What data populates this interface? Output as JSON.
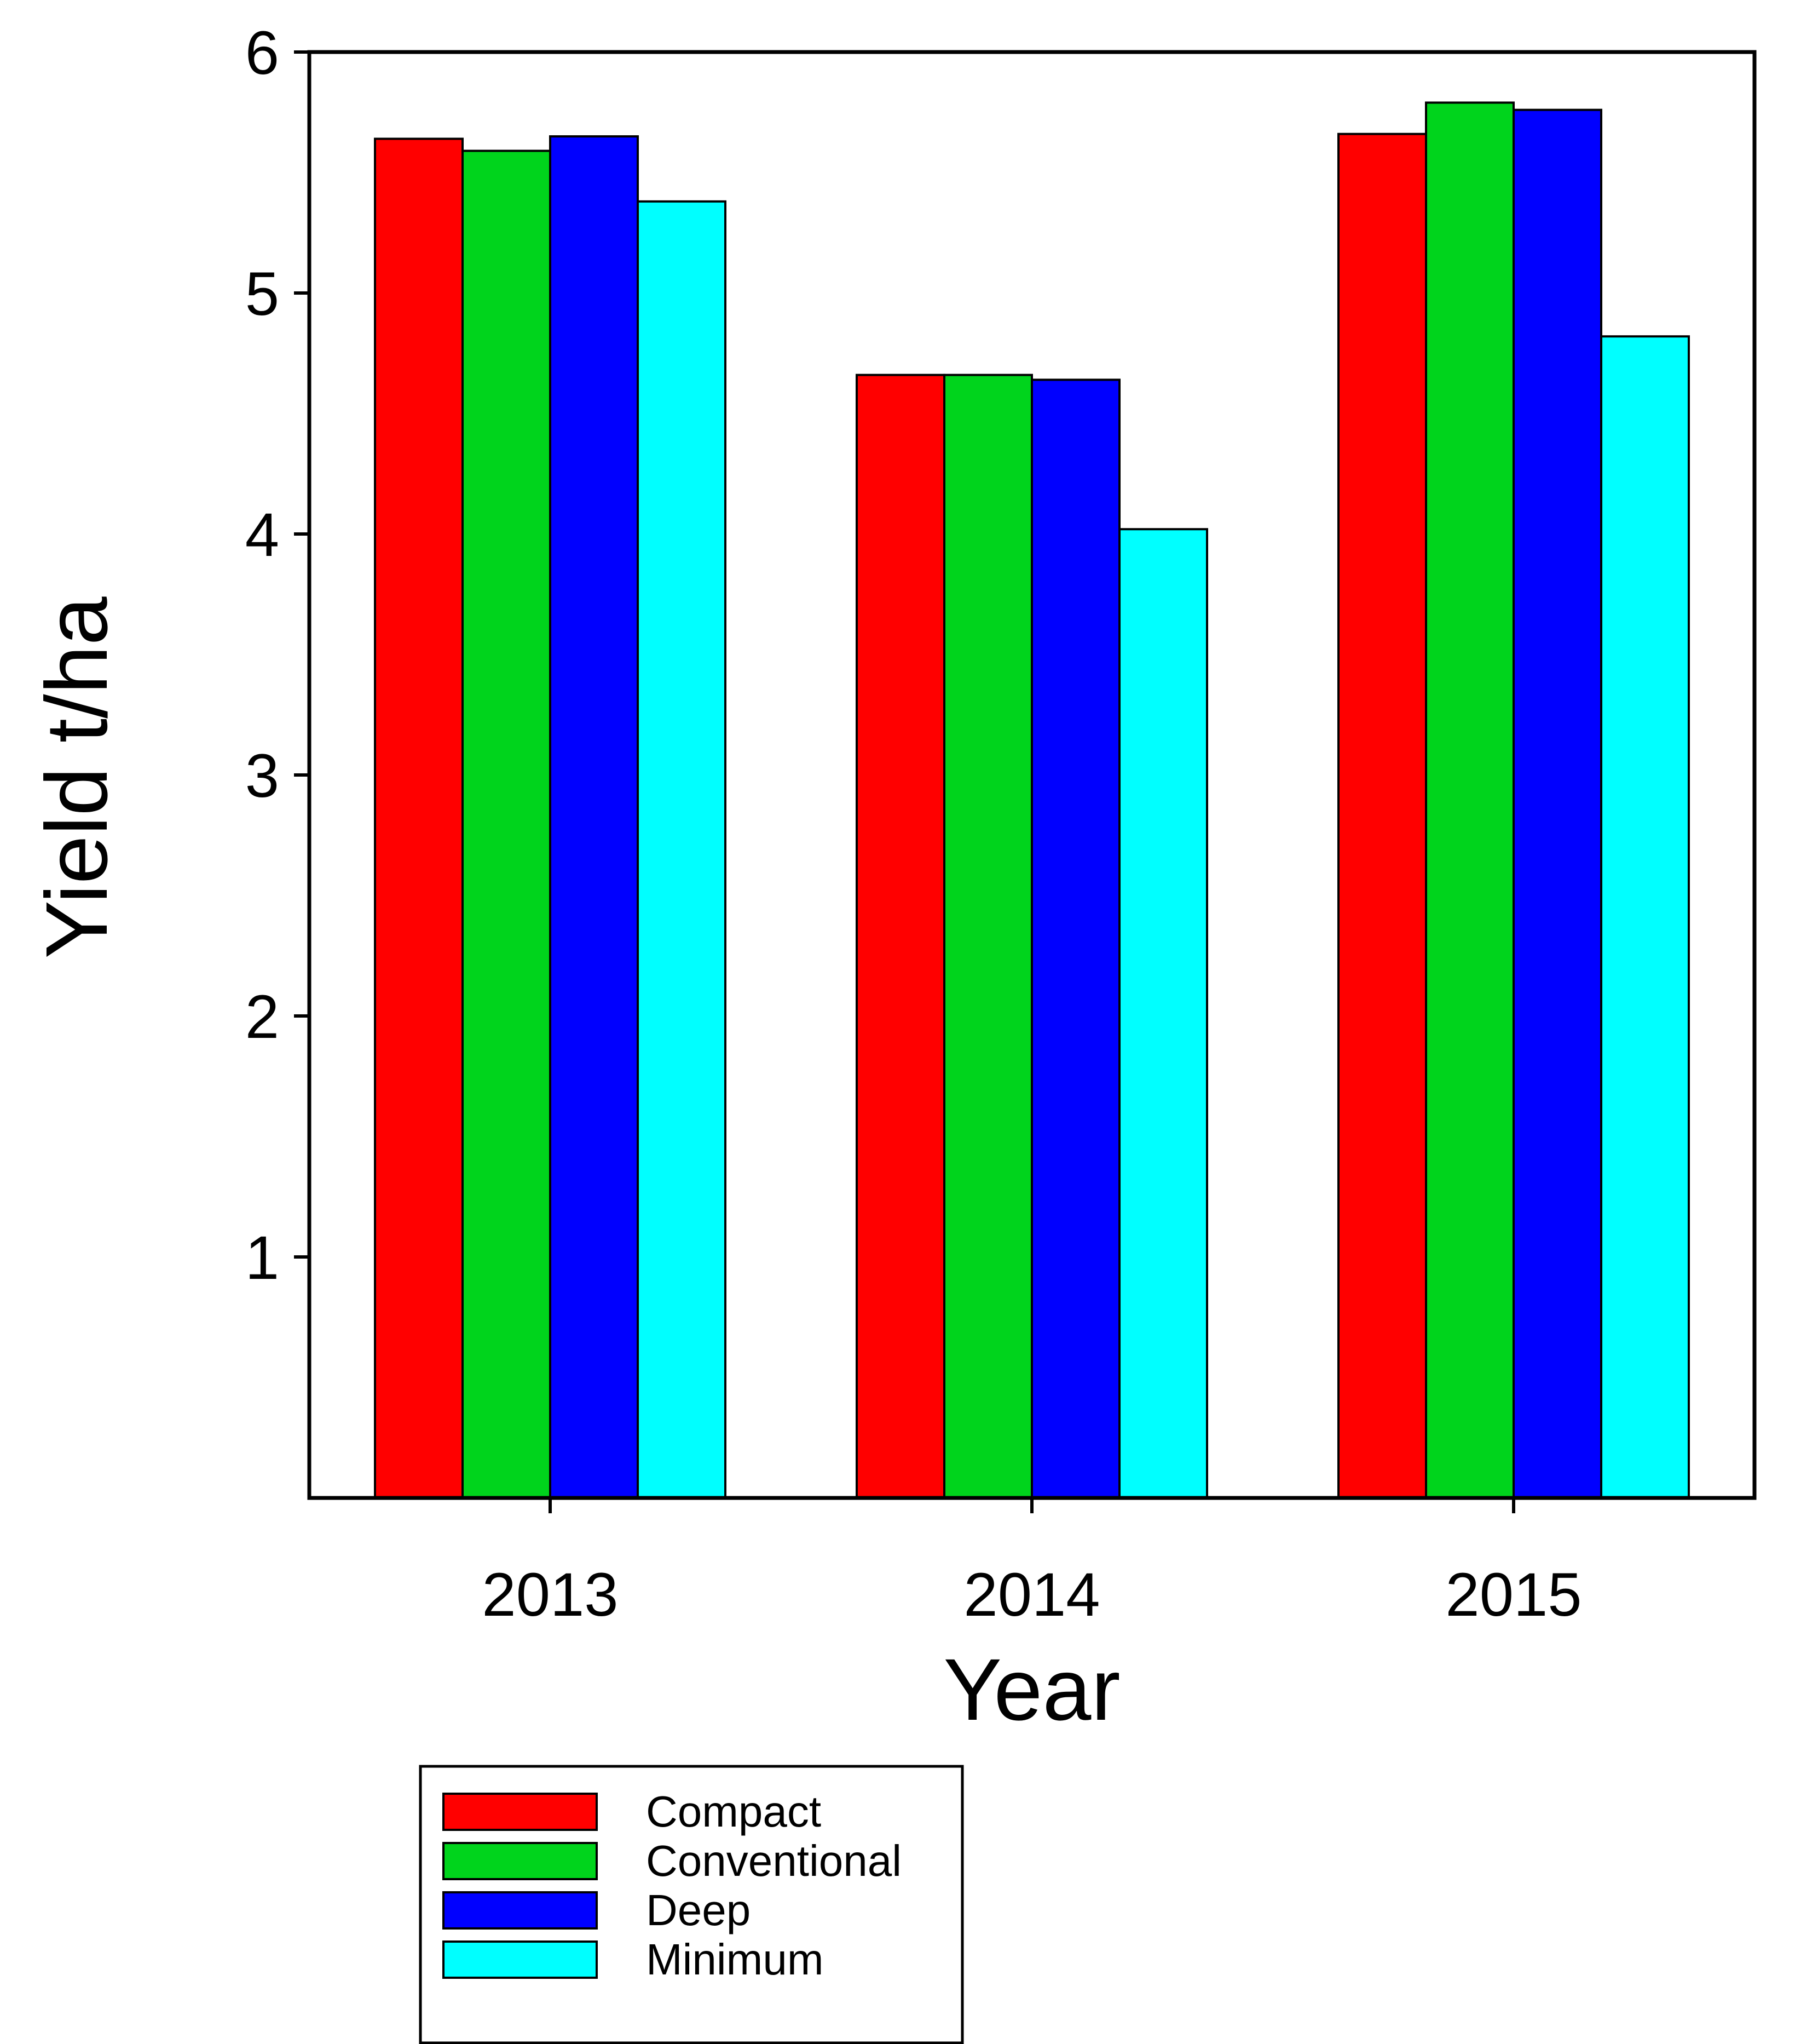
{
  "chart_data": {
    "type": "bar",
    "title": "",
    "xlabel": "Year",
    "ylabel": "Yield t/ha",
    "categories": [
      "2013",
      "2014",
      "2015"
    ],
    "ylim": [
      0,
      6
    ],
    "yticks": [
      "1",
      "2",
      "3",
      "4",
      "5",
      "6"
    ],
    "grid": false,
    "legend_position": "bottom-left, below chart",
    "series": [
      {
        "name": "Compact",
        "color": "#ff0000",
        "values": [
          5.64,
          4.66,
          5.66
        ]
      },
      {
        "name": "Conventional",
        "color": "#00d41c",
        "values": [
          5.59,
          4.66,
          5.79
        ]
      },
      {
        "name": "Deep",
        "color": "#0000ff",
        "values": [
          5.65,
          4.64,
          5.76
        ]
      },
      {
        "name": "Minimum",
        "color": "#00ffff",
        "values": [
          5.38,
          4.02,
          4.82
        ]
      }
    ]
  }
}
